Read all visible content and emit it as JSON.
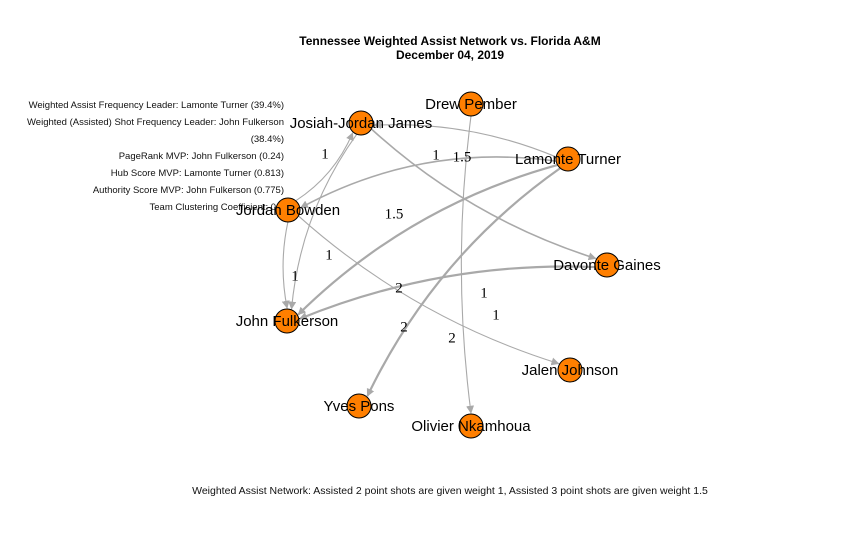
{
  "title": "Tennessee Weighted Assist Network vs. Florida A&M",
  "subtitle": "December 04, 2019",
  "stats": [
    "Weighted Assist Frequency Leader: Lamonte Turner (39.4%)",
    "Weighted (Assisted) Shot Frequency Leader: John Fulkerson (38.4%)",
    "PageRank MVP: John Fulkerson (0.24)",
    "Hub Score MVP: Lamonte Turner (0.813)",
    "Authority Score MVP: John Fulkerson (0.775)",
    "Team Clustering Coefficient: 0.6"
  ],
  "caption": "Weighted Assist Network: Assisted 2 point shots are given weight 1, Assisted 3 point shots are given weight 1.5",
  "node_color": "#ff7f00",
  "edge_color": "#a9a9a9",
  "nodes": [
    {
      "id": "jjj",
      "label": "Josiah-Jordan James"
    },
    {
      "id": "pember",
      "label": "Drew Pember"
    },
    {
      "id": "turner",
      "label": "Lamonte Turner"
    },
    {
      "id": "bowden",
      "label": "Jordan Bowden"
    },
    {
      "id": "gaines",
      "label": "Davonte Gaines"
    },
    {
      "id": "fulkerson",
      "label": "John Fulkerson"
    },
    {
      "id": "johnson",
      "label": "Jalen Johnson"
    },
    {
      "id": "pons",
      "label": "Yves Pons"
    },
    {
      "id": "nkamhoua",
      "label": "Olivier Nkamhoua"
    }
  ],
  "edges": [
    {
      "from": "turner",
      "to": "jjj",
      "weight": "1"
    },
    {
      "from": "jjj",
      "to": "gaines",
      "weight": "1.5"
    },
    {
      "from": "turner",
      "to": "bowden",
      "weight": "1.5"
    },
    {
      "from": "bowden",
      "to": "jjj",
      "weight": "1"
    },
    {
      "from": "jjj",
      "to": "fulkerson",
      "weight": "1"
    },
    {
      "from": "bowden",
      "to": "fulkerson",
      "weight": "1"
    },
    {
      "from": "turner",
      "to": "fulkerson",
      "weight": "2"
    },
    {
      "from": "gaines",
      "to": "fulkerson",
      "weight": "2"
    },
    {
      "from": "turner",
      "to": "pons",
      "weight": "2"
    },
    {
      "from": "bowden",
      "to": "johnson",
      "weight": "1"
    },
    {
      "from": "pember",
      "to": "nkamhoua",
      "weight": "1"
    }
  ]
}
